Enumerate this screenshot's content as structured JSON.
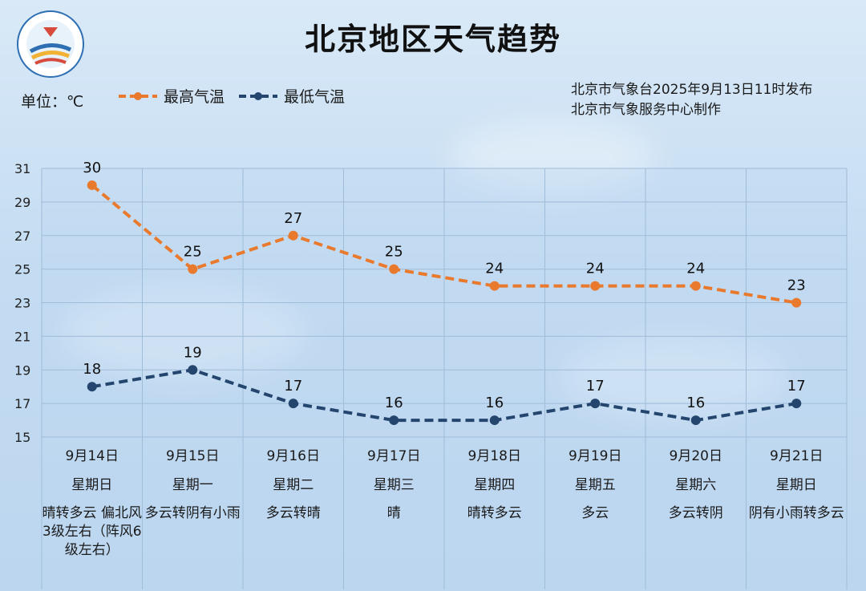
{
  "header": {
    "title": "北京地区天气趋势",
    "unit": "单位：℃",
    "source_line1": "北京市气象台2025年9月13日11时发布",
    "source_line2": "北京市气象服务中心制作"
  },
  "colors": {
    "high": "#e97a2d",
    "low": "#24466e",
    "grid": "#9fbcd8"
  },
  "chart_data": {
    "type": "line",
    "title": "北京地区天气趋势",
    "ylabel": "单位：℃",
    "ylim": [
      15,
      31
    ],
    "yticks": [
      15,
      17,
      19,
      21,
      23,
      25,
      27,
      29,
      31
    ],
    "grid": true,
    "legend_position": "top-left",
    "categories": [
      "9月14日",
      "9月15日",
      "9月16日",
      "9月17日",
      "9月18日",
      "9月19日",
      "9月20日",
      "9月21日"
    ],
    "weekdays": [
      "星期日",
      "星期一",
      "星期二",
      "星期三",
      "星期四",
      "星期五",
      "星期六",
      "星期日"
    ],
    "weather": [
      "晴转多云\n偏北风3级左右（阵风6级左右）",
      "多云转阴有小雨",
      "多云转晴",
      "晴",
      "晴转多云",
      "多云",
      "多云转阴",
      "阴有小雨转多云"
    ],
    "series": [
      {
        "name": "最高气温",
        "values": [
          30,
          25,
          27,
          25,
          24,
          24,
          24,
          23
        ]
      },
      {
        "name": "最低气温",
        "values": [
          18,
          19,
          17,
          16,
          16,
          17,
          16,
          17
        ]
      }
    ]
  }
}
